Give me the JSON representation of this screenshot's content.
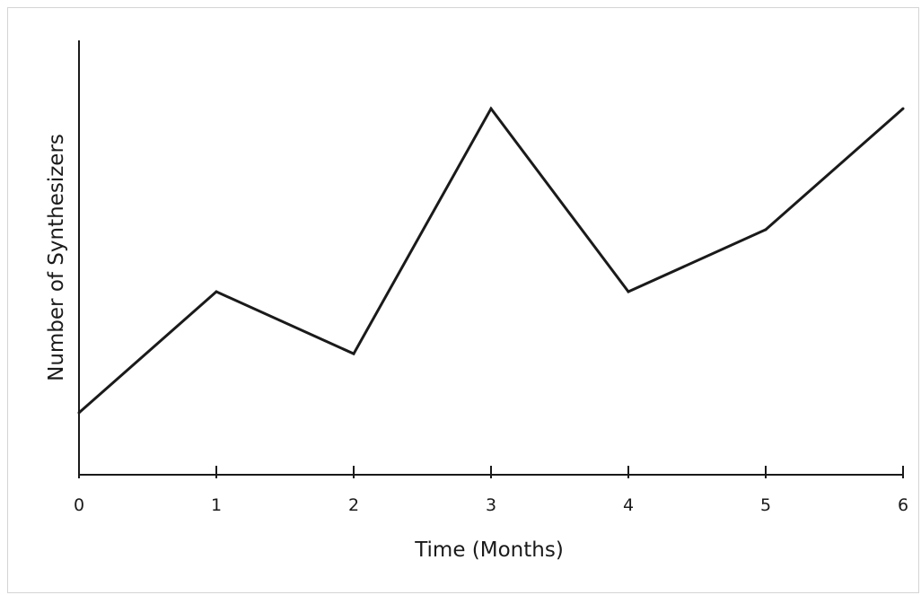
{
  "chart_data": {
    "type": "line",
    "title": "",
    "xlabel": "Time (Months)",
    "ylabel": "Number of Synthesizers",
    "x": [
      0,
      1,
      2,
      3,
      4,
      5,
      6
    ],
    "x_tick_labels": [
      "0",
      "1",
      "2",
      "3",
      "4",
      "5",
      "6"
    ],
    "y_tick_labels": [],
    "series": [
      {
        "values": [
          1.0,
          2.95,
          1.95,
          5.9,
          2.95,
          3.95,
          5.9
        ]
      }
    ],
    "xlim": [
      0,
      6
    ],
    "ylim": [
      0,
      7
    ],
    "grid": false,
    "legend": "none",
    "line_color": "#1a1a1a"
  }
}
